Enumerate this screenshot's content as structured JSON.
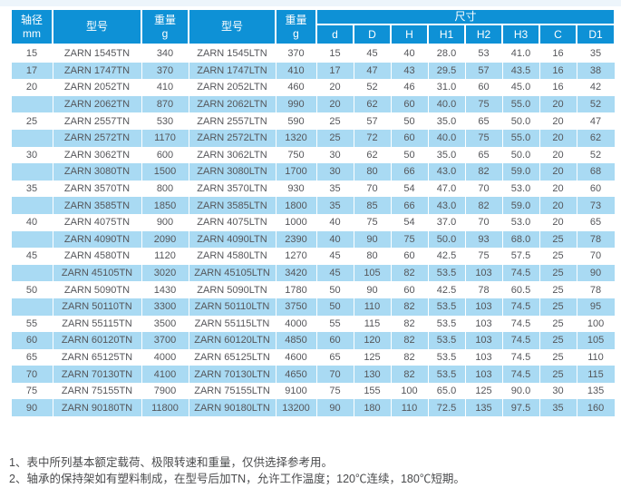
{
  "colors": {
    "header_blue": "#0e91d6",
    "row_alt_blue": "#a9daf3",
    "top_stripe": "#edf5fb",
    "body_text": "#55565a"
  },
  "table": {
    "header": {
      "shaft_label": "轴径",
      "shaft_unit": "mm",
      "model1_label": "型号",
      "weight_label": "重量",
      "weight_unit": "g",
      "model2_label": "型号",
      "dims_group_label": "尺寸",
      "dim_cols": [
        "d",
        "D",
        "H",
        "H1",
        "H2",
        "H3",
        "C",
        "D1"
      ]
    },
    "rows": [
      {
        "shaft": "15",
        "model1": "ZARN 1545TN",
        "w1": "340",
        "model2": "ZARN 1545LTN",
        "w2": "370",
        "dims": [
          "15",
          "45",
          "40",
          "28.0",
          "53",
          "41.0",
          "16",
          "35"
        ]
      },
      {
        "shaft": "17",
        "model1": "ZARN 1747TN",
        "w1": "370",
        "model2": "ZARN 1747LTN",
        "w2": "410",
        "dims": [
          "17",
          "47",
          "43",
          "29.5",
          "57",
          "43.5",
          "16",
          "38"
        ]
      },
      {
        "shaft": "20",
        "model1": "ZARN 2052TN",
        "w1": "410",
        "model2": "ZARN 2052LTN",
        "w2": "460",
        "dims": [
          "20",
          "52",
          "46",
          "31.0",
          "60",
          "45.0",
          "16",
          "42"
        ]
      },
      {
        "shaft": "",
        "model1": "ZARN 2062TN",
        "w1": "870",
        "model2": "ZARN 2062LTN",
        "w2": "990",
        "dims": [
          "20",
          "62",
          "60",
          "40.0",
          "75",
          "55.0",
          "20",
          "52"
        ]
      },
      {
        "shaft": "25",
        "model1": "ZARN 2557TN",
        "w1": "530",
        "model2": "ZARN 2557LTN",
        "w2": "590",
        "dims": [
          "25",
          "57",
          "50",
          "35.0",
          "65",
          "50.0",
          "20",
          "47"
        ]
      },
      {
        "shaft": "",
        "model1": "ZARN 2572TN",
        "w1": "1170",
        "model2": "ZARN 2572LTN",
        "w2": "1320",
        "dims": [
          "25",
          "72",
          "60",
          "40.0",
          "75",
          "55.0",
          "20",
          "62"
        ]
      },
      {
        "shaft": "30",
        "model1": "ZARN 3062TN",
        "w1": "600",
        "model2": "ZARN 3062LTN",
        "w2": "750",
        "dims": [
          "30",
          "62",
          "50",
          "35.0",
          "65",
          "50.0",
          "20",
          "52"
        ]
      },
      {
        "shaft": "",
        "model1": "ZARN 3080TN",
        "w1": "1500",
        "model2": "ZARN 3080LTN",
        "w2": "1700",
        "dims": [
          "30",
          "80",
          "66",
          "43.0",
          "82",
          "59.0",
          "20",
          "68"
        ]
      },
      {
        "shaft": "35",
        "model1": "ZARN 3570TN",
        "w1": "800",
        "model2": "ZARN 3570LTN",
        "w2": "930",
        "dims": [
          "35",
          "70",
          "54",
          "47.0",
          "70",
          "53.0",
          "20",
          "60"
        ]
      },
      {
        "shaft": "",
        "model1": "ZARN 3585TN",
        "w1": "1850",
        "model2": "ZARN 3585LTN",
        "w2": "1800",
        "dims": [
          "35",
          "85",
          "66",
          "43.0",
          "82",
          "59.0",
          "20",
          "73"
        ]
      },
      {
        "shaft": "40",
        "model1": "ZARN 4075TN",
        "w1": "900",
        "model2": "ZARN 4075LTN",
        "w2": "1000",
        "dims": [
          "40",
          "75",
          "54",
          "37.0",
          "70",
          "53.0",
          "20",
          "65"
        ]
      },
      {
        "shaft": "",
        "model1": "ZARN 4090TN",
        "w1": "2090",
        "model2": "ZARN 4090LTN",
        "w2": "2390",
        "dims": [
          "40",
          "90",
          "75",
          "50.0",
          "93",
          "68.0",
          "25",
          "78"
        ]
      },
      {
        "shaft": "45",
        "model1": "ZARN 4580TN",
        "w1": "1120",
        "model2": "ZARN 4580LTN",
        "w2": "1270",
        "dims": [
          "45",
          "80",
          "60",
          "42.5",
          "75",
          "57.5",
          "25",
          "70"
        ]
      },
      {
        "shaft": "",
        "model1": "ZARN 45105TN",
        "w1": "3020",
        "model2": "ZARN 45105LTN",
        "w2": "3420",
        "dims": [
          "45",
          "105",
          "82",
          "53.5",
          "103",
          "74.5",
          "25",
          "90"
        ]
      },
      {
        "shaft": "50",
        "model1": "ZARN 5090TN",
        "w1": "1430",
        "model2": "ZARN 5090LTN",
        "w2": "1780",
        "dims": [
          "50",
          "90",
          "60",
          "42.5",
          "78",
          "60.5",
          "25",
          "78"
        ]
      },
      {
        "shaft": "",
        "model1": "ZARN 50110TN",
        "w1": "3300",
        "model2": "ZARN 50110LTN",
        "w2": "3750",
        "dims": [
          "50",
          "110",
          "82",
          "53.5",
          "103",
          "74.5",
          "25",
          "95"
        ]
      },
      {
        "shaft": "55",
        "model1": "ZARN 55115TN",
        "w1": "3500",
        "model2": "ZARN 55115LTN",
        "w2": "4000",
        "dims": [
          "55",
          "115",
          "82",
          "53.5",
          "103",
          "74.5",
          "25",
          "100"
        ]
      },
      {
        "shaft": "60",
        "model1": "ZARN 60120TN",
        "w1": "3700",
        "model2": "ZARN 60120LTN",
        "w2": "4850",
        "dims": [
          "60",
          "120",
          "82",
          "53.5",
          "103",
          "74.5",
          "25",
          "105"
        ]
      },
      {
        "shaft": "65",
        "model1": "ZARN 65125TN",
        "w1": "4000",
        "model2": "ZARN 65125LTN",
        "w2": "4600",
        "dims": [
          "65",
          "125",
          "82",
          "53.5",
          "103",
          "74.5",
          "25",
          "110"
        ]
      },
      {
        "shaft": "70",
        "model1": "ZARN 70130TN",
        "w1": "4100",
        "model2": "ZARN 70130LTN",
        "w2": "4650",
        "dims": [
          "70",
          "130",
          "82",
          "53.5",
          "103",
          "74.5",
          "25",
          "115"
        ]
      },
      {
        "shaft": "75",
        "model1": "ZARN 75155TN",
        "w1": "7900",
        "model2": "ZARN 75155LTN",
        "w2": "9100",
        "dims": [
          "75",
          "155",
          "100",
          "65.0",
          "125",
          "90.0",
          "30",
          "135"
        ]
      },
      {
        "shaft": "90",
        "model1": "ZARN 90180TN",
        "w1": "11800",
        "model2": "ZARN 90180LTN",
        "w2": "13200",
        "dims": [
          "90",
          "180",
          "110",
          "72.5",
          "135",
          "97.5",
          "35",
          "160"
        ]
      }
    ]
  },
  "footnotes": [
    "1、表中所列基本额定载荷、极限转速和重量，仅供选择参考用。",
    "2、轴承的保持架如有塑料制成，在型号后加TN，允许工作温度；120℃连续，180℃短期。"
  ]
}
